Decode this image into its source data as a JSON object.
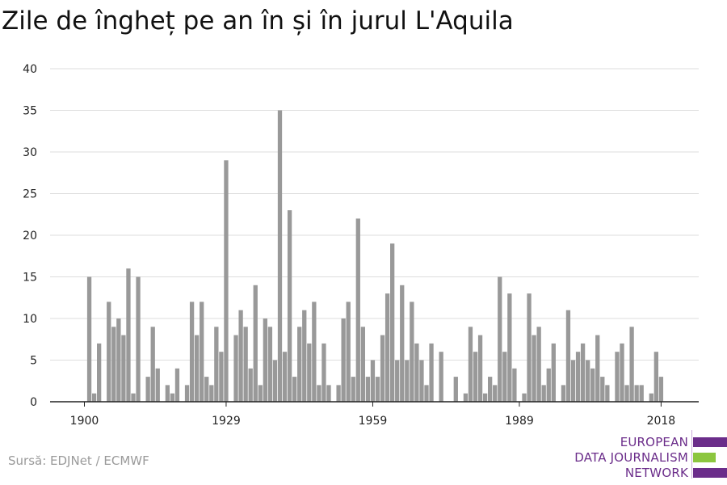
{
  "title": "Zile de îngheț pe an în și în jurul L'Aquila",
  "source": "Sursă: EDJNet / ECMWF",
  "logo": {
    "line1": "EUROPEAN",
    "line2": "DATA JOURNALISM",
    "line3": "NETWORK",
    "color_primary": "#6b2d8a",
    "color_accent": "#8cc63f"
  },
  "chart_data": {
    "type": "bar",
    "bar_color": "#999999",
    "ylim": [
      0,
      40
    ],
    "y_ticks": [
      0,
      5,
      10,
      15,
      20,
      25,
      30,
      35,
      40
    ],
    "x_ticks": [
      1900,
      1929,
      1959,
      1989,
      2018
    ],
    "grid": true,
    "years": [
      1900,
      1901,
      1902,
      1903,
      1904,
      1905,
      1906,
      1907,
      1908,
      1909,
      1910,
      1911,
      1912,
      1913,
      1914,
      1915,
      1916,
      1917,
      1918,
      1919,
      1920,
      1921,
      1922,
      1923,
      1924,
      1925,
      1926,
      1927,
      1928,
      1929,
      1930,
      1931,
      1932,
      1933,
      1934,
      1935,
      1936,
      1937,
      1938,
      1939,
      1940,
      1941,
      1942,
      1943,
      1944,
      1945,
      1946,
      1947,
      1948,
      1949,
      1950,
      1951,
      1952,
      1953,
      1954,
      1955,
      1956,
      1957,
      1958,
      1959,
      1960,
      1961,
      1962,
      1963,
      1964,
      1965,
      1966,
      1967,
      1968,
      1969,
      1970,
      1971,
      1972,
      1973,
      1974,
      1975,
      1976,
      1977,
      1978,
      1979,
      1980,
      1981,
      1982,
      1983,
      1984,
      1985,
      1986,
      1987,
      1988,
      1989,
      1990,
      1991,
      1992,
      1993,
      1994,
      1995,
      1996,
      1997,
      1998,
      1999,
      2000,
      2001,
      2002,
      2003,
      2004,
      2005,
      2006,
      2007,
      2008,
      2009,
      2010,
      2011,
      2012,
      2013,
      2014,
      2015,
      2016,
      2017,
      2018
    ],
    "values": [
      0,
      15,
      1,
      7,
      0,
      12,
      9,
      10,
      8,
      16,
      1,
      15,
      0,
      3,
      9,
      4,
      0,
      2,
      1,
      4,
      0,
      2,
      12,
      8,
      12,
      3,
      2,
      9,
      6,
      29,
      0,
      8,
      11,
      9,
      4,
      14,
      2,
      10,
      9,
      5,
      35,
      6,
      23,
      3,
      9,
      11,
      7,
      12,
      2,
      7,
      2,
      0,
      2,
      10,
      12,
      3,
      22,
      9,
      3,
      5,
      3,
      8,
      13,
      19,
      5,
      14,
      5,
      12,
      7,
      5,
      2,
      7,
      0,
      6,
      0,
      0,
      3,
      0,
      1,
      9,
      6,
      8,
      1,
      3,
      2,
      15,
      6,
      13,
      4,
      0,
      1,
      13,
      8,
      9,
      2,
      4,
      7,
      0,
      2,
      11,
      5,
      6,
      7,
      5,
      4,
      8,
      3,
      2,
      0,
      6,
      7,
      2,
      9,
      2,
      2,
      0,
      1,
      6,
      3
    ]
  }
}
